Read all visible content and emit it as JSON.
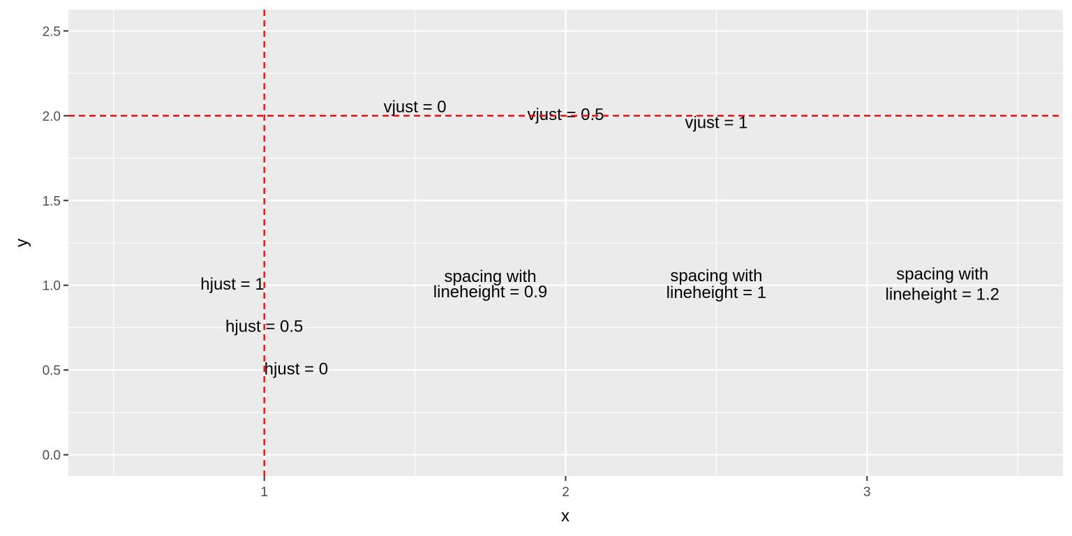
{
  "chart_data": {
    "type": "scatter",
    "title": "",
    "xlabel": "x",
    "ylabel": "y",
    "xlim": [
      0.35,
      3.65
    ],
    "ylim": [
      -0.125,
      2.625
    ],
    "x_ticks": [
      1,
      2,
      3
    ],
    "x_tick_labels": [
      "1",
      "2",
      "3"
    ],
    "y_ticks": [
      0,
      0.5,
      1,
      1.5,
      2,
      2.5
    ],
    "y_tick_labels": [
      "0.0",
      "0.5",
      "1.0",
      "1.5",
      "2.0",
      "2.5"
    ],
    "grid": true,
    "panel_background": "#ebebeb",
    "grid_color": "#ffffff",
    "reference_lines": [
      {
        "orientation": "vertical",
        "value": 1,
        "color": "#ff0000",
        "style": "dashed"
      },
      {
        "orientation": "horizontal",
        "value": 2,
        "color": "#ff0000",
        "style": "dashed"
      }
    ],
    "annotations": [
      {
        "lines": [
          "hjust = 1"
        ],
        "x": 1,
        "y": 1,
        "hjust": 1,
        "vjust": 0.5,
        "lineheight": 1
      },
      {
        "lines": [
          "hjust = 0.5"
        ],
        "x": 1,
        "y": 0.75,
        "hjust": 0.5,
        "vjust": 0.5,
        "lineheight": 1
      },
      {
        "lines": [
          "hjust = 0"
        ],
        "x": 1,
        "y": 0.5,
        "hjust": 0,
        "vjust": 0.5,
        "lineheight": 1
      },
      {
        "lines": [
          "vjust = 0"
        ],
        "x": 1.5,
        "y": 2,
        "hjust": 0.5,
        "vjust": 0,
        "lineheight": 1
      },
      {
        "lines": [
          "vjust = 0.5"
        ],
        "x": 2,
        "y": 2,
        "hjust": 0.5,
        "vjust": 0.5,
        "lineheight": 1
      },
      {
        "lines": [
          "vjust = 1"
        ],
        "x": 2.5,
        "y": 2,
        "hjust": 0.5,
        "vjust": 1,
        "lineheight": 1
      },
      {
        "lines": [
          "spacing with",
          "lineheight = 0.9"
        ],
        "x": 1.75,
        "y": 1,
        "hjust": 0.5,
        "vjust": 0.5,
        "lineheight": 0.9
      },
      {
        "lines": [
          "spacing with",
          "lineheight = 1"
        ],
        "x": 2.5,
        "y": 1,
        "hjust": 0.5,
        "vjust": 0.5,
        "lineheight": 1
      },
      {
        "lines": [
          "spacing with",
          "lineheight = 1.2"
        ],
        "x": 3.25,
        "y": 1,
        "hjust": 0.5,
        "vjust": 0.5,
        "lineheight": 1.2
      }
    ]
  }
}
